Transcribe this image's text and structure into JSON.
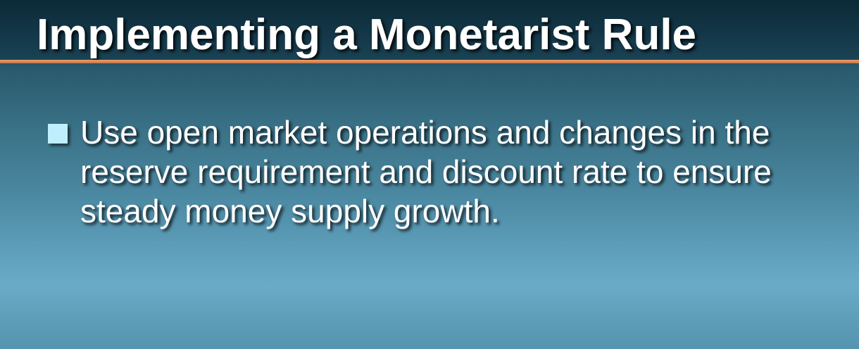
{
  "slide": {
    "title": "Implementing a Monetarist Rule",
    "bullets": [
      "Use open market operations and changes in the reserve requirement and discount rate to ensure steady money supply growth."
    ]
  },
  "colors": {
    "title_text": "#ffffff",
    "accent_rule": "#d88a5a",
    "bullet_marker": "#bfeefc",
    "background_top": "#10303c",
    "background_mid": "#4a87a0"
  }
}
